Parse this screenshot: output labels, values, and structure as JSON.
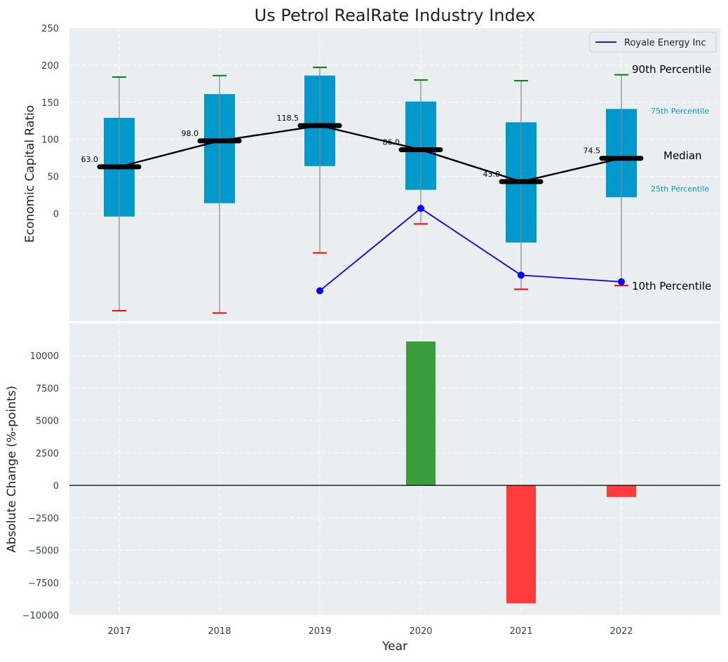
{
  "chart_data": [
    {
      "type": "box",
      "title": "Us Petrol RealRate Industry Index",
      "xlabel": "",
      "ylabel": "Economic Capital Ratio",
      "ylim": [
        -145,
        250
      ],
      "yticks": [
        0,
        50,
        100,
        150,
        200,
        250
      ],
      "categories": [
        "2017",
        "2018",
        "2019",
        "2020",
        "2021",
        "2022"
      ],
      "p10": [
        -131,
        -134,
        -53,
        -14,
        -102,
        -97
      ],
      "p25": [
        -4,
        14,
        64,
        32,
        -39,
        22
      ],
      "median": [
        63.0,
        98.0,
        118.5,
        86.0,
        43.0,
        74.5
      ],
      "median_labels": [
        "63.0",
        "98.0",
        "118.5",
        "86.0",
        "43.0",
        "74.5"
      ],
      "p75": [
        129,
        161,
        186,
        151,
        123,
        141
      ],
      "p90": [
        184,
        186,
        197,
        180,
        179,
        187
      ],
      "series": [
        {
          "name": "Royale Energy Inc",
          "x": [
            "2019",
            "2020",
            "2021",
            "2022"
          ],
          "values": [
            -104,
            7,
            -83,
            -92
          ],
          "color": "#0000ff"
        }
      ],
      "legend": "top-right",
      "annotations": [
        "90th Percentile",
        "75th Percentile",
        "Median",
        "25th Percentile",
        "10th Percentile"
      ],
      "colors": {
        "box": "#0099cc",
        "median": "#000000",
        "p90_cap": "#008000",
        "p10_cap": "#ff0000",
        "whisker": "#888888",
        "bg": "#eaeef0"
      }
    },
    {
      "type": "bar",
      "xlabel": "Year",
      "ylabel": "Absolute Change (%-points)",
      "ylim": [
        -10000,
        12500
      ],
      "yticks": [
        -10000,
        -7500,
        -5000,
        -2500,
        0,
        2500,
        5000,
        7500,
        10000
      ],
      "categories": [
        "2017",
        "2018",
        "2019",
        "2020",
        "2021",
        "2022"
      ],
      "values": [
        0,
        0,
        0,
        11100,
        -9100,
        -900
      ],
      "colors": {
        "positive": "#3a9d3d",
        "negative": "#ff3b3b"
      }
    }
  ]
}
